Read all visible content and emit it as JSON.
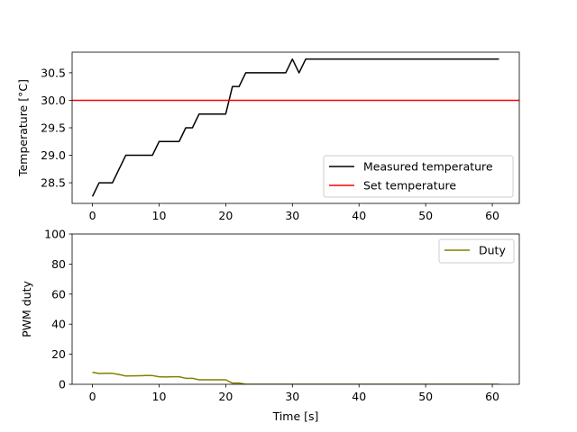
{
  "chart_data": [
    {
      "type": "line",
      "title": "",
      "xlabel": "",
      "ylabel": "Temperature [°C]",
      "xlim": [
        -3.05,
        64.05
      ],
      "ylim": [
        28.125,
        30.875
      ],
      "xticks": [
        0,
        10,
        20,
        30,
        40,
        50,
        60
      ],
      "yticks": [
        28.5,
        29.0,
        29.5,
        30.0,
        30.5
      ],
      "ytick_labels": [
        "28.5",
        "29.0",
        "29.5",
        "30.0",
        "30.5"
      ],
      "xtick_labels": [
        "0",
        "10",
        "20",
        "30",
        "40",
        "50",
        "60"
      ],
      "grid": false,
      "legend": "lower right",
      "series": [
        {
          "name": "Measured temperature",
          "color": "#000000",
          "x": [
            0,
            1,
            2,
            3,
            4,
            5,
            6,
            7,
            8,
            9,
            10,
            11,
            12,
            13,
            14,
            15,
            16,
            17,
            18,
            19,
            20,
            21,
            22,
            23,
            24,
            25,
            26,
            27,
            28,
            29,
            30,
            31,
            32,
            61
          ],
          "y": [
            28.25,
            28.5,
            28.5,
            28.5,
            28.75,
            29.0,
            29.0,
            29.0,
            29.0,
            29.0,
            29.25,
            29.25,
            29.25,
            29.25,
            29.5,
            29.5,
            29.75,
            29.75,
            29.75,
            29.75,
            29.75,
            30.25,
            30.25,
            30.5,
            30.5,
            30.5,
            30.5,
            30.5,
            30.5,
            30.5,
            30.75,
            30.5,
            30.75,
            30.75
          ]
        },
        {
          "name": "Set temperature",
          "color": "#ff0000",
          "hline": 30.0
        }
      ]
    },
    {
      "type": "line",
      "title": "",
      "xlabel": "Time [s]",
      "ylabel": "PWM duty",
      "xlim": [
        -3.05,
        64.05
      ],
      "ylim": [
        0,
        100
      ],
      "xticks": [
        0,
        10,
        20,
        30,
        40,
        50,
        60
      ],
      "yticks": [
        0,
        20,
        40,
        60,
        80,
        100
      ],
      "xtick_labels": [
        "0",
        "10",
        "20",
        "30",
        "40",
        "50",
        "60"
      ],
      "ytick_labels": [
        "0",
        "20",
        "40",
        "60",
        "80",
        "100"
      ],
      "grid": false,
      "legend": "upper right",
      "series": [
        {
          "name": "Duty",
          "color": "#808000",
          "x": [
            0,
            1,
            2,
            3,
            4,
            5,
            6,
            7,
            8,
            9,
            10,
            11,
            12,
            13,
            14,
            15,
            16,
            17,
            18,
            19,
            20,
            21,
            22,
            23,
            24,
            25,
            30,
            40,
            50,
            61
          ],
          "y": [
            8.0,
            7.2,
            7.3,
            7.3,
            6.5,
            5.5,
            5.6,
            5.7,
            5.8,
            5.8,
            5.0,
            4.9,
            5.0,
            5.0,
            4.0,
            4.0,
            3.0,
            3.0,
            3.0,
            3.0,
            3.0,
            0.8,
            0.8,
            0.0,
            0.0,
            0.0,
            0.0,
            0.0,
            0.0,
            0.0
          ]
        }
      ]
    }
  ]
}
